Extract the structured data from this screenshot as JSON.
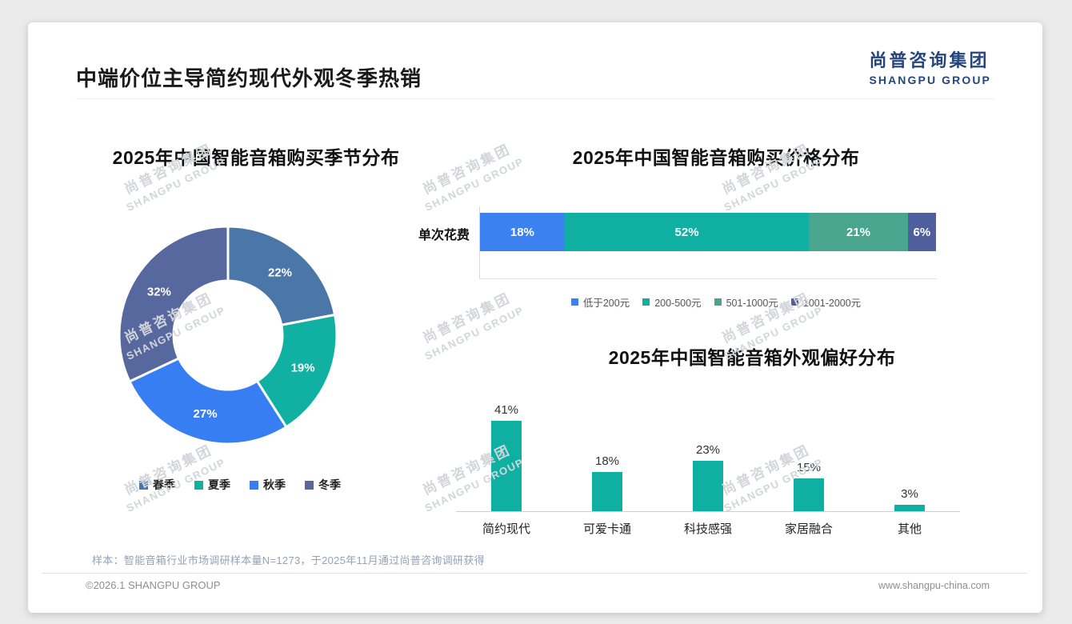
{
  "page": {
    "title": "中端价位主导简约现代外观冬季热销",
    "logo": {
      "cn": "尚普咨询集团",
      "en": "SHANGPU GROUP"
    },
    "watermark": {
      "cn": "尚普咨询集团",
      "en": "SHANGPU GROUP"
    },
    "footer": {
      "note": "样本：智能音箱行业市场调研样本量N=1273，于2025年11月通过尚普咨询调研获得",
      "copyright": "©2026.1 SHANGPU GROUP",
      "website": "www.shangpu-china.com"
    }
  },
  "colors": {
    "spring": "#4a76a8",
    "summer": "#10b0a2",
    "autumn": "#377ef2",
    "winter": "#57689e",
    "price_under200": "#3b82f0",
    "price_200_500": "#0fb0a2",
    "price_501_1000": "#4aa58e",
    "price_1001_2000": "#4f5f9e",
    "pref_bar": "#0fb0a2"
  },
  "chart_data": [
    {
      "type": "pie",
      "variant": "donut",
      "title": "2025年中国智能音箱购买季节分布",
      "categories": [
        "春季",
        "夏季",
        "秋季",
        "冬季"
      ],
      "values": [
        22,
        19,
        27,
        32
      ],
      "labels": [
        "22%",
        "19%",
        "27%",
        "32%"
      ],
      "colors": [
        "#4a76a8",
        "#10b0a2",
        "#377ef2",
        "#57689e"
      ],
      "legend_position": "bottom",
      "start_angle_deg": -90,
      "direction": "clockwise"
    },
    {
      "type": "bar",
      "variant": "stacked-horizontal",
      "title": "2025年中国智能音箱购买价格分布",
      "row_label": "单次花费",
      "categories": [
        "低于200元",
        "200-500元",
        "501-1000元",
        "1001-2000元"
      ],
      "values": [
        18,
        52,
        21,
        6
      ],
      "labels": [
        "18%",
        "52%",
        "21%",
        "6%"
      ],
      "colors": [
        "#3b82f0",
        "#0fb0a2",
        "#4aa58e",
        "#4f5f9e"
      ],
      "legend_position": "bottom",
      "xlim": [
        0,
        100
      ]
    },
    {
      "type": "bar",
      "variant": "vertical",
      "title": "2025年中国智能音箱外观偏好分布",
      "categories": [
        "简约现代",
        "可爱卡通",
        "科技感强",
        "家居融合",
        "其他"
      ],
      "values": [
        41,
        18,
        23,
        15,
        3
      ],
      "labels": [
        "41%",
        "18%",
        "23%",
        "15%",
        "3%"
      ],
      "color": "#0fb0a2",
      "ylim": [
        0,
        45
      ],
      "grid": false
    }
  ]
}
